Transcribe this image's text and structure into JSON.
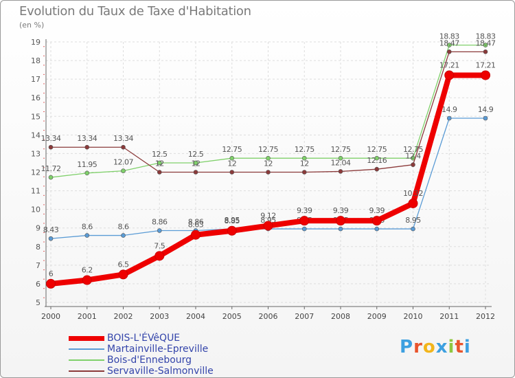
{
  "chart_data": {
    "type": "line",
    "title": "Evolution du Taux de Taxe d'Habitation",
    "subtitle": "(en %)",
    "ylim": [
      5,
      19
    ],
    "yticks": [
      5,
      6,
      7,
      8,
      9,
      10,
      11,
      12,
      13,
      14,
      15,
      16,
      17,
      18,
      19
    ],
    "categories": [
      "2000",
      "2001",
      "2002",
      "2003",
      "2004",
      "2005",
      "2006",
      "2007",
      "2008",
      "2009",
      "2010",
      "2011",
      "2012"
    ],
    "series": [
      {
        "name": "Martainville-Epreville",
        "color": "#5a9bd5",
        "values": [
          8.43,
          8.6,
          8.6,
          8.86,
          8.86,
          8.95,
          8.95,
          8.95,
          8.95,
          8.95,
          8.95,
          14.9,
          14.9
        ],
        "labels": [
          "8.43",
          "8.6",
          "8.6",
          "8.86",
          "8.86",
          "8.95",
          "8.95",
          "8.95",
          "8.95",
          "8.95",
          "8.95",
          "14.9",
          "14.9"
        ]
      },
      {
        "name": "Bois-d'Ennebourg",
        "color": "#7fd06a",
        "values": [
          11.72,
          11.95,
          12.07,
          12.5,
          12.5,
          12.75,
          12.75,
          12.75,
          12.75,
          12.75,
          12.75,
          18.83,
          18.83
        ],
        "labels": [
          "11.72",
          "11.95",
          "12.07",
          "12.5",
          "12.5",
          "12.75",
          "12.75",
          "12.75",
          "12.75",
          "12.75",
          "12.75",
          "18.83",
          "18.83"
        ]
      },
      {
        "name": "Servaville-Salmonville",
        "color": "#8b3a3a",
        "values": [
          13.34,
          13.34,
          13.34,
          12,
          12,
          12,
          12,
          12,
          12.04,
          12.16,
          12.4,
          18.47,
          18.47
        ],
        "labels": [
          "13.34",
          "13.34",
          "13.34",
          "12",
          "12",
          "12",
          "12",
          "12",
          "12.04",
          "12.16",
          "12.4",
          "18.47",
          "18.47"
        ]
      },
      {
        "name": "BOIS-L'ÉVêQUE",
        "color": "#ee0000",
        "values": [
          6,
          6.2,
          6.5,
          7.5,
          8.63,
          8.85,
          9.12,
          9.39,
          9.39,
          9.39,
          10.32,
          17.21,
          17.21
        ],
        "labels": [
          "6",
          "6.2",
          "6.5",
          "7.5",
          "8.63",
          "8.85",
          "9.12",
          "9.39",
          "9.39",
          "9.39",
          "10.32",
          "17.21",
          "17.21"
        ]
      }
    ],
    "legend": [
      {
        "name": "BOIS-L'ÉVêQUE",
        "color": "#ee0000"
      },
      {
        "name": "Martainville-Epreville",
        "color": "#5a9bd5"
      },
      {
        "name": "Bois-d'Ennebourg",
        "color": "#7fd06a"
      },
      {
        "name": "Servaville-Salmonville",
        "color": "#8b3a3a"
      }
    ]
  },
  "logo": {
    "letters": [
      "P",
      "r",
      "o",
      "x",
      "i",
      "t",
      "i"
    ],
    "colors": [
      "#3da0e0",
      "#e8542c",
      "#f2b51c",
      "#3da0e0",
      "#8fc640",
      "#e8542c",
      "#3da0e0"
    ]
  }
}
